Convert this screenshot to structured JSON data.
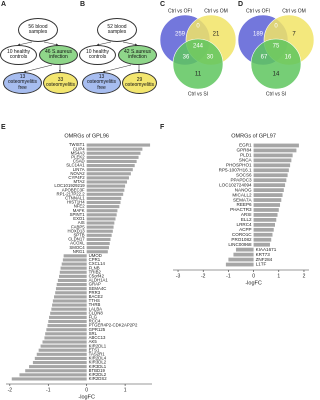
{
  "flowcharts": [
    {
      "label": "A",
      "nodes": [
        "56 blood samples",
        "10 healthy controls",
        "46 S.aureus infection",
        "13 osteomyelitis free",
        "33 osteomyelitis"
      ]
    },
    {
      "label": "B",
      "nodes": [
        "52 blood samples",
        "10 healthy controls",
        "42 S.aureus infection",
        "13 osteomyelitis free",
        "29 osteomyelitis"
      ]
    }
  ],
  "venns": [
    {
      "label": "C",
      "sets": [
        "Ctrl vs OFI",
        "Ctrl vs OM",
        "Ctrl vs SI"
      ],
      "regions": [
        259,
        0,
        21,
        244,
        30,
        36,
        11
      ]
    },
    {
      "label": "D",
      "sets": [
        "Ctrl vs OFI",
        "Ctrl vs OM",
        "Ctrl vs SI"
      ],
      "regions": [
        189,
        0,
        7,
        75,
        16,
        67,
        14
      ]
    }
  ],
  "chart_data": [
    {
      "type": "hbar",
      "label": "E",
      "title": "OMRGs of GPL96",
      "xlabel": "-logFC",
      "color": "#a6a6a6",
      "xlim": [
        -2.1,
        1.7
      ],
      "xticks": [
        -2,
        -1,
        0,
        1
      ],
      "categories": [
        "TWIST1",
        "CLIP4",
        "MS4A3",
        "PLEK2",
        "CSAD",
        "SLC14A1",
        "LIN7A",
        "NOVA2",
        "CYP4F2",
        "MTA2",
        "LOC101929219",
        "APOBEC3F",
        "RP1-217P22.2",
        "CTNNAL1",
        "HIST1H4",
        "NFE2",
        "MAFK",
        "SPINT1",
        "EXO1",
        "AIS",
        "FABP5",
        "HOXD13",
        "SPTB",
        "CLDN17",
        "ACOXL",
        "SMOC4",
        "NRG1",
        "UMOD",
        "CPR1",
        "CXCL14",
        "FLNB",
        "TRIB2",
        "C5orf42",
        "ALDH1A1",
        "GRAP",
        "SEMA4C",
        "PRR3",
        "BACE2",
        "TTHS",
        "THRB",
        "LALBA",
        "CLDN8",
        "FLG",
        "RCC4",
        "PTGER4P2-CDK2AP2P2",
        "GPR125",
        "SRL",
        "ABCC13",
        "AK5",
        "KIR2DL1",
        "ETS1",
        "TAS2R1",
        "KIR2DL4",
        "KIR3DL2",
        "KIR3DL1",
        "BTBD19",
        "KIR2DL2",
        "KIR2DS2"
      ],
      "values": [
        1.65,
        1.45,
        1.4,
        1.35,
        1.3,
        1.25,
        1.2,
        1.15,
        1.1,
        1.05,
        1.0,
        0.98,
        0.95,
        0.9,
        0.88,
        0.85,
        0.8,
        0.78,
        0.75,
        0.72,
        0.7,
        0.68,
        0.65,
        0.62,
        0.6,
        0.58,
        0.55,
        -0.6,
        -0.62,
        -0.65,
        -0.68,
        -0.7,
        -0.72,
        -0.75,
        -0.78,
        -0.8,
        -0.82,
        -0.85,
        -0.88,
        -0.9,
        -0.92,
        -0.95,
        -0.98,
        -1.0,
        -1.02,
        -1.05,
        -1.08,
        -1.1,
        -1.15,
        -1.2,
        -1.25,
        -1.3,
        -1.35,
        -1.4,
        -1.5,
        -1.6,
        -1.75,
        -1.95
      ]
    },
    {
      "type": "hbar",
      "label": "F",
      "title": "OMRGs of GPL97",
      "xlabel": "-logFC",
      "color": "#a6a6a6",
      "xlim": [
        -3.2,
        2.2
      ],
      "xticks": [
        -3,
        -2,
        -1,
        0,
        1,
        2
      ],
      "categories": [
        "EGR1",
        "GPR84",
        "PLD1",
        "SNCA",
        "PHOSPHO1",
        "RP5-1007H16.1",
        "SOCS6",
        "PPAPDC3",
        "LOC102724094",
        "NANOG",
        "MICALL2",
        "SEMA7A",
        "REEP6",
        "PHACTR3",
        "ARSI",
        "ELL2",
        "LRRC4",
        "ACPP",
        "CORO1C",
        "PRO1082",
        "LINC00968",
        "KIAA1671",
        "KRT73",
        "ZNF284",
        "L1TF"
      ],
      "values": [
        1.8,
        1.7,
        1.55,
        1.5,
        1.45,
        1.4,
        1.35,
        1.3,
        1.25,
        1.2,
        1.15,
        1.1,
        1.05,
        1.0,
        0.95,
        0.9,
        0.85,
        0.8,
        0.75,
        0.7,
        0.65,
        -0.7,
        -0.8,
        -1.0,
        -1.1
      ]
    }
  ]
}
